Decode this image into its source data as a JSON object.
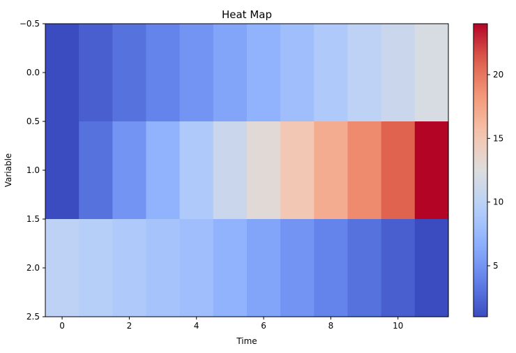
{
  "chart_data": {
    "type": "heatmap",
    "title": "Heat Map",
    "xlabel": "Time",
    "ylabel": "Variable",
    "x_ticks": [
      0,
      2,
      4,
      6,
      8,
      10
    ],
    "y_ticks": [
      "−0.5",
      "0.0",
      "0.5",
      "1.0",
      "1.5",
      "2.0",
      "2.5"
    ],
    "x_range": [
      -0.5,
      11.5
    ],
    "y_range": [
      -0.5,
      2.5
    ],
    "colormap": "coolwarm",
    "vmin": 1,
    "vmax": 24,
    "colorbar_ticks": [
      5,
      10,
      15,
      20
    ],
    "rows": [
      [
        1,
        2,
        3,
        4,
        5,
        6,
        7,
        8,
        9,
        10,
        11,
        12
      ],
      [
        1,
        3,
        5,
        7,
        9,
        11,
        13,
        15,
        17,
        19,
        21,
        24
      ],
      [
        10,
        9.5,
        9,
        8.5,
        8,
        7,
        6,
        5,
        4,
        3,
        2,
        1
      ]
    ]
  }
}
